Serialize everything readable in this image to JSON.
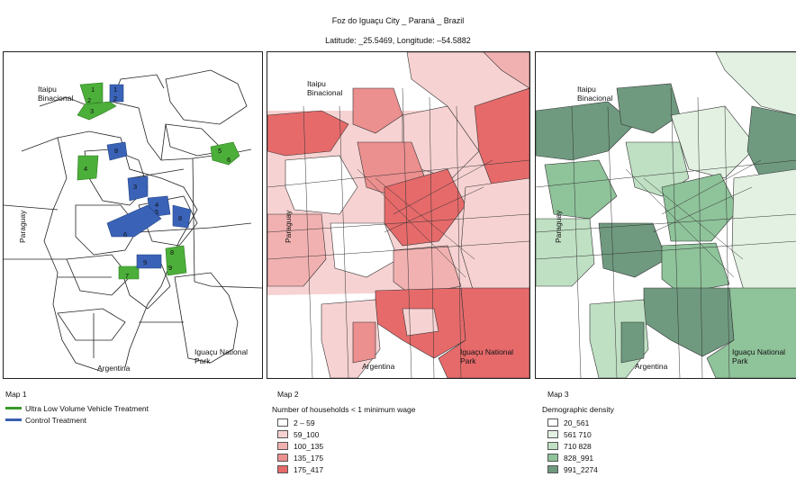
{
  "title": "Foz do Iguaçu City _ Paraná _ Brazil",
  "subtitle": "Latitude: _25.5469, Longitude: –54.5882",
  "place_labels": {
    "itaipu": "Itaipu\nBinacional",
    "paraguay": "Paraguay",
    "argentina": "Argentina",
    "iguacu_park": "Iguaçu National\nPark"
  },
  "map1": {
    "label": "Map 1",
    "legend": [
      {
        "label": "Ultra Low Volume Vehicle Treatment",
        "color": "#3a9a2a"
      },
      {
        "label": "Control Treatment",
        "color": "#3a5fb0"
      }
    ],
    "green_numbers": [
      "1",
      "2",
      "3",
      "4",
      "5",
      "6",
      "7",
      "8",
      "9"
    ],
    "blue_numbers": [
      "1",
      "2",
      "3",
      "4",
      "5",
      "6",
      "7",
      "8",
      "9"
    ]
  },
  "map2": {
    "label": "Map 2",
    "legend_title": "Number of households < 1 minimum wage",
    "classes": [
      {
        "label": "2 – 59",
        "color": "#ffffff"
      },
      {
        "label": "59_100",
        "color": "#f7d2d2"
      },
      {
        "label": "100_135",
        "color": "#f2b1b1"
      },
      {
        "label": "135_175",
        "color": "#ec8f8f"
      },
      {
        "label": "175_417",
        "color": "#e66a6a"
      }
    ]
  },
  "map3": {
    "label": "Map 3",
    "legend_title": "Demographic density",
    "classes": [
      {
        "label": "20_561",
        "color": "#ffffff"
      },
      {
        "label": "561 710",
        "color": "#e2f1e2"
      },
      {
        "label": "710 828",
        "color": "#bfe0c3"
      },
      {
        "label": "828_991",
        "color": "#8fc39a"
      },
      {
        "label": "991_2274",
        "color": "#6f9a80"
      }
    ]
  }
}
